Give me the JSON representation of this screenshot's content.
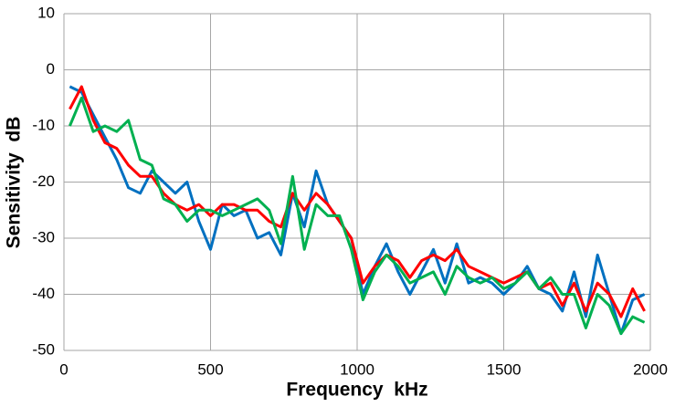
{
  "chart_data": {
    "type": "line",
    "xlabel": "Frequency  kHz",
    "ylabel": "Sensitivity  dB",
    "x": [
      20,
      60,
      100,
      140,
      180,
      220,
      260,
      300,
      340,
      380,
      420,
      460,
      500,
      540,
      580,
      620,
      660,
      700,
      740,
      780,
      820,
      860,
      900,
      940,
      980,
      1020,
      1060,
      1100,
      1140,
      1180,
      1220,
      1260,
      1300,
      1340,
      1380,
      1420,
      1460,
      1500,
      1540,
      1580,
      1620,
      1660,
      1700,
      1740,
      1780,
      1820,
      1860,
      1900,
      1940,
      1980
    ],
    "series": [
      {
        "color": "#0070c0",
        "values": [
          -3,
          -4,
          -8,
          -12,
          -16,
          -21,
          -22,
          -18,
          -20,
          -22,
          -20,
          -27,
          -32,
          -24,
          -26,
          -25,
          -30,
          -29,
          -33,
          -22,
          -28,
          -18,
          -24,
          -27,
          -30,
          -40,
          -35,
          -31,
          -36,
          -40,
          -36,
          -32,
          -38,
          -31,
          -38,
          -37,
          -38,
          -40,
          -38,
          -35,
          -39,
          -40,
          -43,
          -36,
          -44,
          -33,
          -40,
          -47,
          -41,
          -40
        ]
      },
      {
        "color": "#ff0000",
        "values": [
          -7,
          -3,
          -9,
          -13,
          -14,
          -17,
          -19,
          -19,
          -22,
          -24,
          -25,
          -24,
          -26,
          -24,
          -24,
          -25,
          -25,
          -27,
          -28,
          -22,
          -25,
          -22,
          -24,
          -27,
          -30,
          -38,
          -35,
          -33,
          -34,
          -37,
          -34,
          -33,
          -34,
          -32,
          -35,
          -36,
          -37,
          -38,
          -37,
          -36,
          -39,
          -38,
          -42,
          -38,
          -43,
          -38,
          -40,
          -44,
          -39,
          -43
        ]
      },
      {
        "color": "#00b050",
        "values": [
          -10,
          -5,
          -11,
          -10,
          -11,
          -9,
          -16,
          -17,
          -23,
          -24,
          -27,
          -25,
          -25,
          -26,
          -25,
          -24,
          -23,
          -25,
          -31,
          -19,
          -32,
          -24,
          -26,
          -26,
          -32,
          -41,
          -36,
          -33,
          -35,
          -38,
          -37,
          -36,
          -40,
          -35,
          -37,
          -38,
          -37,
          -39,
          -38,
          -36,
          -39,
          -37,
          -40,
          -40,
          -46,
          -40,
          -42,
          -47,
          -44,
          -45
        ]
      }
    ],
    "xlim": [
      0,
      2000
    ],
    "xticks": [
      0,
      500,
      1000,
      1500,
      2000
    ],
    "ylim": [
      -50,
      10
    ],
    "yticks": [
      -50,
      -40,
      -30,
      -20,
      -10,
      0,
      10
    ],
    "grid": true
  }
}
